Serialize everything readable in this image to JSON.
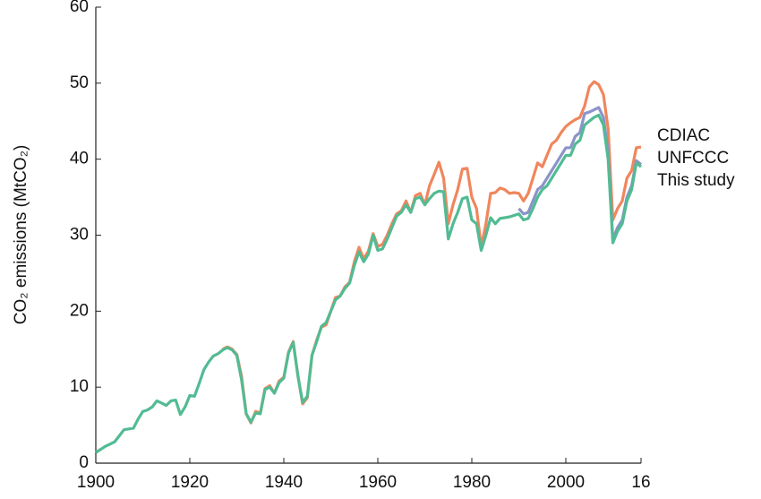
{
  "chart_data": {
    "type": "line",
    "ylabel": "CO₂ emissions (MtCO₂)",
    "xlim": [
      1900,
      2016
    ],
    "ylim": [
      0,
      60
    ],
    "xticks": [
      1900,
      1920,
      1940,
      1960,
      1980,
      2000,
      {
        "value": 2016,
        "label": "16"
      }
    ],
    "yticks": [
      0,
      10,
      20,
      30,
      40,
      50,
      60
    ],
    "x": [
      1900,
      1901,
      1902,
      1903,
      1904,
      1905,
      1906,
      1907,
      1908,
      1909,
      1910,
      1911,
      1912,
      1913,
      1914,
      1915,
      1916,
      1917,
      1918,
      1919,
      1920,
      1921,
      1922,
      1923,
      1924,
      1925,
      1926,
      1927,
      1928,
      1929,
      1930,
      1931,
      1932,
      1933,
      1934,
      1935,
      1936,
      1937,
      1938,
      1939,
      1940,
      1941,
      1942,
      1943,
      1944,
      1945,
      1946,
      1947,
      1948,
      1949,
      1950,
      1951,
      1952,
      1953,
      1954,
      1955,
      1956,
      1957,
      1958,
      1959,
      1960,
      1961,
      1962,
      1963,
      1964,
      1965,
      1966,
      1967,
      1968,
      1969,
      1970,
      1971,
      1972,
      1973,
      1974,
      1975,
      1976,
      1977,
      1978,
      1979,
      1980,
      1981,
      1982,
      1983,
      1984,
      1985,
      1986,
      1987,
      1988,
      1989,
      1990,
      1991,
      1992,
      1993,
      1994,
      1995,
      1996,
      1997,
      1998,
      1999,
      2000,
      2001,
      2002,
      2003,
      2004,
      2005,
      2006,
      2007,
      2008,
      2009,
      2010,
      2011,
      2012,
      2013,
      2014,
      2015,
      2016
    ],
    "series": [
      {
        "name": "CDIAC",
        "color": "#f0865c",
        "values": [
          null,
          null,
          null,
          null,
          null,
          null,
          null,
          null,
          null,
          null,
          null,
          null,
          null,
          null,
          null,
          null,
          null,
          null,
          null,
          null,
          null,
          null,
          null,
          null,
          null,
          null,
          null,
          15.0,
          15.3,
          15.0,
          14.3,
          11.5,
          6.5,
          5.3,
          6.8,
          6.6,
          9.8,
          10.2,
          9.2,
          10.8,
          11.3,
          14.6,
          16.0,
          11.5,
          7.8,
          8.6,
          14.2,
          16.2,
          17.9,
          18.2,
          20.0,
          21.8,
          22.0,
          23.2,
          23.8,
          26.5,
          28.4,
          26.9,
          27.9,
          30.2,
          28.5,
          28.8,
          30.0,
          31.5,
          32.8,
          33.2,
          34.5,
          33.0,
          35.2,
          35.5,
          34.0,
          36.5,
          38.0,
          39.6,
          37.5,
          31.5,
          34.0,
          36.0,
          38.7,
          38.8,
          35.0,
          33.5,
          28.5,
          31.5,
          35.5,
          35.6,
          36.2,
          36.0,
          35.5,
          35.6,
          35.5,
          34.5,
          35.5,
          37.5,
          39.5,
          39.0,
          40.5,
          42.0,
          42.5,
          43.5,
          44.3,
          44.8,
          45.2,
          45.5,
          47.0,
          49.5,
          50.2,
          49.8,
          48.5,
          44.0,
          32.0,
          33.5,
          34.5,
          37.5,
          38.5,
          41.5,
          41.6
        ]
      },
      {
        "name": "UNFCCC",
        "color": "#8c93c9",
        "values": [
          null,
          null,
          null,
          null,
          null,
          null,
          null,
          null,
          null,
          null,
          null,
          null,
          null,
          null,
          null,
          null,
          null,
          null,
          null,
          null,
          null,
          null,
          null,
          null,
          null,
          null,
          null,
          null,
          null,
          null,
          null,
          null,
          null,
          null,
          null,
          null,
          null,
          null,
          null,
          null,
          null,
          null,
          null,
          null,
          null,
          null,
          null,
          null,
          null,
          null,
          null,
          null,
          null,
          null,
          null,
          null,
          null,
          null,
          null,
          null,
          null,
          null,
          null,
          null,
          null,
          null,
          null,
          null,
          null,
          null,
          null,
          null,
          null,
          null,
          null,
          null,
          null,
          null,
          null,
          null,
          null,
          null,
          null,
          null,
          null,
          null,
          null,
          null,
          null,
          null,
          33.5,
          32.8,
          33.0,
          34.5,
          36.0,
          36.5,
          37.5,
          38.5,
          39.5,
          40.5,
          41.5,
          41.5,
          43.0,
          43.5,
          46.0,
          46.2,
          46.5,
          46.8,
          45.5,
          41.0,
          29.5,
          31.0,
          32.0,
          35.0,
          36.5,
          39.8,
          39.3
        ]
      },
      {
        "name": "This study",
        "color": "#52bb93",
        "values": [
          1.4,
          1.8,
          2.2,
          2.5,
          2.8,
          3.6,
          4.4,
          4.5,
          4.6,
          5.8,
          6.8,
          7.0,
          7.4,
          8.2,
          7.9,
          7.6,
          8.2,
          8.3,
          6.4,
          7.4,
          8.9,
          8.8,
          10.5,
          12.3,
          13.3,
          14.1,
          14.4,
          14.9,
          15.2,
          14.9,
          14.2,
          11.0,
          6.5,
          5.4,
          6.6,
          6.5,
          9.7,
          10.0,
          9.2,
          10.6,
          11.2,
          14.5,
          15.9,
          11.5,
          8.0,
          8.8,
          14.2,
          16.0,
          18.0,
          18.5,
          20.0,
          21.5,
          22.0,
          23.0,
          23.7,
          26.0,
          27.8,
          26.5,
          27.5,
          30.0,
          28.0,
          28.2,
          29.5,
          31.0,
          32.5,
          33.0,
          34.0,
          33.0,
          34.8,
          35.0,
          34.0,
          34.8,
          35.5,
          35.8,
          35.7,
          29.5,
          31.5,
          33.0,
          34.8,
          35.0,
          32.0,
          31.5,
          28.0,
          30.0,
          32.3,
          31.5,
          32.2,
          32.3,
          32.4,
          32.6,
          32.8,
          32.0,
          32.2,
          33.5,
          35.0,
          36.0,
          36.5,
          37.5,
          38.5,
          39.5,
          40.5,
          40.5,
          42.0,
          42.5,
          44.5,
          45.0,
          45.5,
          45.8,
          44.5,
          40.0,
          29.0,
          30.5,
          31.5,
          34.5,
          36.0,
          39.5,
          39.0
        ]
      }
    ]
  }
}
